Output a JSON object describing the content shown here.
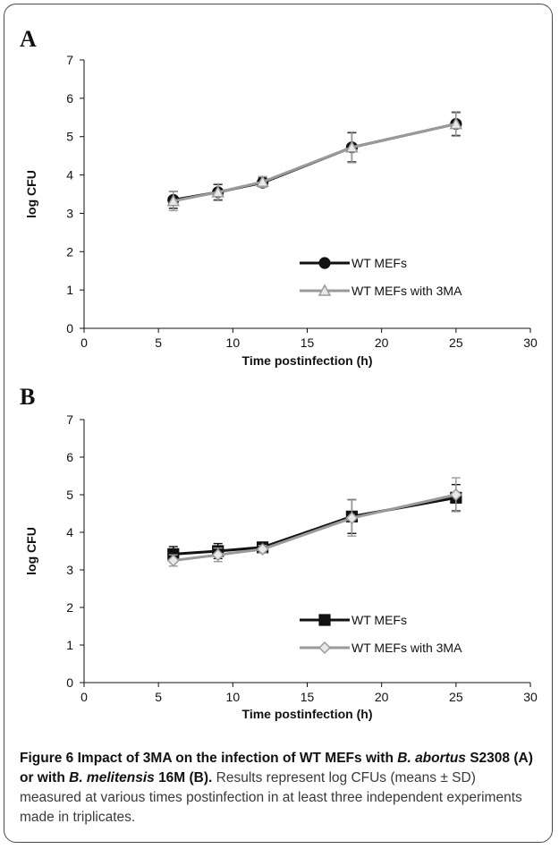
{
  "chart_data": [
    {
      "type": "line",
      "panel_label": "A",
      "xlabel": "Time postinfection (h)",
      "ylabel": "log CFU",
      "xlim": [
        0,
        30
      ],
      "ylim": [
        0,
        7
      ],
      "xticks": [
        0,
        5,
        10,
        15,
        20,
        25,
        30
      ],
      "yticks": [
        0,
        1,
        2,
        3,
        4,
        5,
        6,
        7
      ],
      "legend_position": "bottom-right",
      "series": [
        {
          "name": "WT MEFs",
          "color": "#111111",
          "marker": "circle",
          "x": [
            6,
            9,
            12,
            18,
            25
          ],
          "y": [
            3.35,
            3.55,
            3.8,
            4.72,
            5.33
          ],
          "err": [
            0.22,
            0.2,
            0.12,
            0.38,
            0.3
          ]
        },
        {
          "name": "WT MEFs with 3MA",
          "color": "#9a9a9a",
          "marker": "triangle",
          "x": [
            6,
            9,
            12,
            18,
            25
          ],
          "y": [
            3.32,
            3.55,
            3.82,
            4.72,
            5.33
          ],
          "err": [
            0.25,
            0.22,
            0.14,
            0.4,
            0.32
          ]
        }
      ]
    },
    {
      "type": "line",
      "panel_label": "B",
      "xlabel": "Time postinfection (h)",
      "ylabel": "log CFU",
      "xlim": [
        0,
        30
      ],
      "ylim": [
        0,
        7
      ],
      "xticks": [
        0,
        5,
        10,
        15,
        20,
        25,
        30
      ],
      "yticks": [
        0,
        1,
        2,
        3,
        4,
        5,
        6,
        7
      ],
      "legend_position": "bottom-right",
      "series": [
        {
          "name": "WT MEFs",
          "color": "#111111",
          "marker": "square",
          "x": [
            6,
            9,
            12,
            18,
            25
          ],
          "y": [
            3.42,
            3.5,
            3.6,
            4.42,
            4.92
          ],
          "err": [
            0.2,
            0.2,
            0.1,
            0.45,
            0.35
          ]
        },
        {
          "name": "WT MEFs with 3MA",
          "color": "#9a9a9a",
          "marker": "diamond",
          "x": [
            6,
            9,
            12,
            18,
            25
          ],
          "y": [
            3.25,
            3.4,
            3.55,
            4.38,
            5.0
          ],
          "err": [
            0.15,
            0.18,
            0.1,
            0.48,
            0.45
          ]
        }
      ]
    }
  ],
  "caption": {
    "figure_label": "Figure 6",
    "title_part1": "Impact of 3MA on the infection of WT MEFs with",
    "species1_genus": "B.",
    "species1_name": "abortus",
    "strain1": "S2308 (A) or with",
    "species2": "B. melitensis",
    "strain2": "16M (B).",
    "body": "Results represent log CFUs (means ± SD) measured at various times postinfection in at least three independent experiments made in triplicates."
  }
}
